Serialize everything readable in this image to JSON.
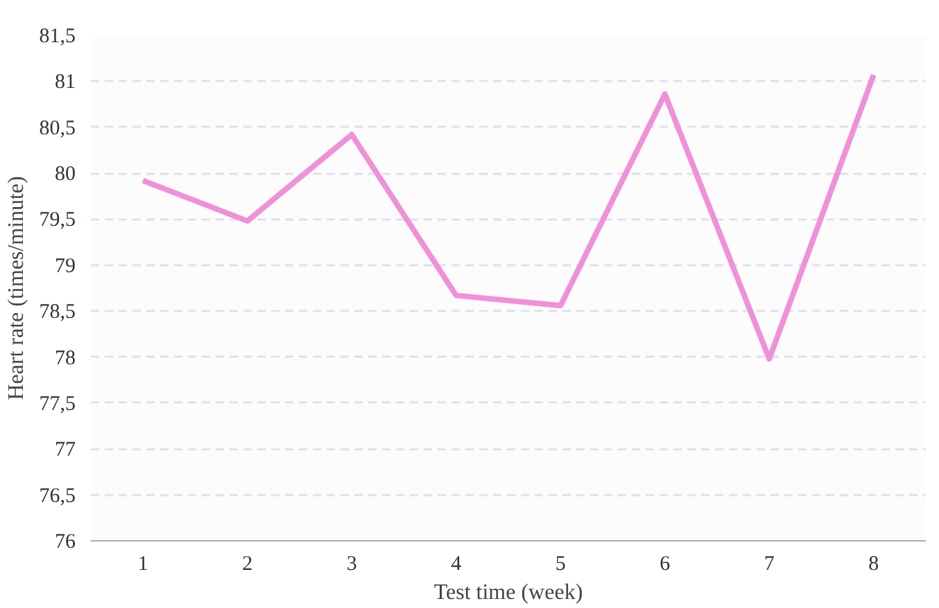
{
  "chart_data": {
    "type": "line",
    "xlabel": "Test time (week)",
    "ylabel": "Heart rate (times/minute)",
    "categories": [
      "1",
      "2",
      "3",
      "4",
      "5",
      "6",
      "7",
      "8"
    ],
    "series": [
      {
        "color": "#f090d8",
        "values": [
          79.92,
          79.48,
          80.42,
          78.67,
          78.56,
          80.86,
          77.98,
          81.07
        ]
      }
    ],
    "ylim": [
      76,
      81.5
    ],
    "yticks": [
      76,
      {
        "value": 76.5,
        "label": "76,5"
      },
      77,
      {
        "value": 77.5,
        "label": "77,5"
      },
      78,
      {
        "value": 78.5,
        "label": "78,5"
      },
      79,
      {
        "value": 79.5,
        "label": "79,5"
      },
      80,
      {
        "value": 80.5,
        "label": "80,5"
      },
      81,
      {
        "value": 81.5,
        "label": "81,5"
      }
    ],
    "grid": "y",
    "line_style": "solid",
    "marker": "none"
  }
}
